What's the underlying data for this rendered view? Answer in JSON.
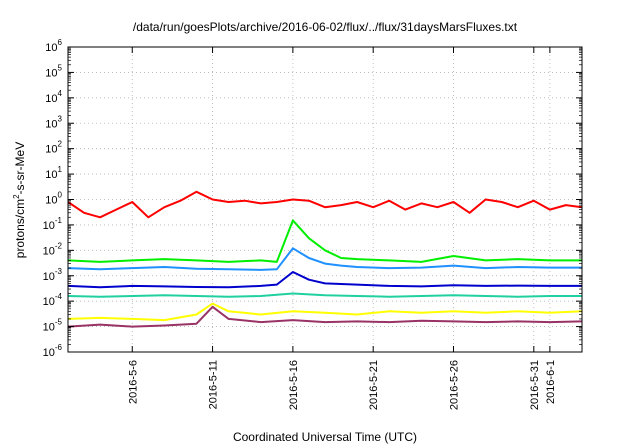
{
  "chart_data": {
    "type": "line",
    "title": "/data/run/goesPlots/archive/2016-06-02/flux/../flux/31daysMarsFluxes.txt",
    "xlabel": "Coordinated Universal Time (UTC)",
    "ylabel": "protons/cm2-s-sr-MeV",
    "y_scale": "log",
    "ylim": [
      1e-06,
      1000000.0
    ],
    "xlim": [
      "2016-05-02",
      "2016-06-03"
    ],
    "grid": true,
    "y_ticks": [
      {
        "base": "10",
        "exp": "-6"
      },
      {
        "base": "10",
        "exp": "-5"
      },
      {
        "base": "10",
        "exp": "-4"
      },
      {
        "base": "10",
        "exp": "-3"
      },
      {
        "base": "10",
        "exp": "-2"
      },
      {
        "base": "10",
        "exp": "-1"
      },
      {
        "base": "10",
        "exp": "0"
      },
      {
        "base": "10",
        "exp": "1"
      },
      {
        "base": "10",
        "exp": "2"
      },
      {
        "base": "10",
        "exp": "3"
      },
      {
        "base": "10",
        "exp": "4"
      },
      {
        "base": "10",
        "exp": "5"
      },
      {
        "base": "10",
        "exp": "6"
      }
    ],
    "x_ticks": [
      {
        "label": "2016-5-6",
        "date": "2016-05-06"
      },
      {
        "label": "2016-5-11",
        "date": "2016-05-11"
      },
      {
        "label": "2016-5-16",
        "date": "2016-05-16"
      },
      {
        "label": "2016-5-21",
        "date": "2016-05-21"
      },
      {
        "label": "2016-5-26",
        "date": "2016-05-26"
      },
      {
        "label": "2016-5-31",
        "date": "2016-05-31"
      },
      {
        "label": "2016-6-1",
        "date": "2016-06-01"
      }
    ],
    "series": [
      {
        "color": "#ff0000",
        "x": [
          "2016-05-02",
          "2016-05-03",
          "2016-05-04",
          "2016-05-05",
          "2016-05-06",
          "2016-05-07",
          "2016-05-08",
          "2016-05-09",
          "2016-05-10",
          "2016-05-11",
          "2016-05-12",
          "2016-05-13",
          "2016-05-14",
          "2016-05-15",
          "2016-05-16",
          "2016-05-17",
          "2016-05-18",
          "2016-05-19",
          "2016-05-20",
          "2016-05-21",
          "2016-05-22",
          "2016-05-23",
          "2016-05-24",
          "2016-05-25",
          "2016-05-26",
          "2016-05-27",
          "2016-05-28",
          "2016-05-29",
          "2016-05-30",
          "2016-05-31",
          "2016-06-01",
          "2016-06-02",
          "2016-06-03"
        ],
        "y": [
          0.8,
          0.3,
          0.2,
          0.4,
          0.8,
          0.2,
          0.5,
          0.9,
          2,
          1,
          0.8,
          0.9,
          0.7,
          0.8,
          1,
          0.9,
          0.5,
          0.6,
          0.8,
          0.5,
          0.9,
          0.4,
          0.7,
          0.5,
          0.8,
          0.3,
          1,
          0.8,
          0.5,
          0.9,
          0.4,
          0.6,
          0.5
        ]
      },
      {
        "color": "#00ee00",
        "x": [
          "2016-05-02",
          "2016-05-04",
          "2016-05-06",
          "2016-05-08",
          "2016-05-10",
          "2016-05-12",
          "2016-05-14",
          "2016-05-15",
          "2016-05-16",
          "2016-05-17",
          "2016-05-18",
          "2016-05-19",
          "2016-05-20",
          "2016-05-22",
          "2016-05-24",
          "2016-05-26",
          "2016-05-28",
          "2016-05-30",
          "2016-06-01",
          "2016-06-03"
        ],
        "y": [
          0.004,
          0.0035,
          0.004,
          0.0045,
          0.004,
          0.0035,
          0.004,
          0.0035,
          0.15,
          0.03,
          0.01,
          0.005,
          0.0045,
          0.004,
          0.0035,
          0.006,
          0.004,
          0.0045,
          0.004,
          0.004
        ]
      },
      {
        "color": "#1e90ff",
        "x": [
          "2016-05-02",
          "2016-05-04",
          "2016-05-06",
          "2016-05-08",
          "2016-05-10",
          "2016-05-12",
          "2016-05-14",
          "2016-05-15",
          "2016-05-16",
          "2016-05-17",
          "2016-05-18",
          "2016-05-19",
          "2016-05-20",
          "2016-05-22",
          "2016-05-24",
          "2016-05-26",
          "2016-05-28",
          "2016-05-30",
          "2016-06-01",
          "2016-06-03"
        ],
        "y": [
          0.002,
          0.0018,
          0.002,
          0.0022,
          0.0019,
          0.0018,
          0.0017,
          0.0018,
          0.012,
          0.005,
          0.003,
          0.0025,
          0.0022,
          0.002,
          0.0021,
          0.0025,
          0.002,
          0.0022,
          0.0021,
          0.0021
        ]
      },
      {
        "color": "#0000cd",
        "x": [
          "2016-05-02",
          "2016-05-04",
          "2016-05-06",
          "2016-05-08",
          "2016-05-10",
          "2016-05-12",
          "2016-05-14",
          "2016-05-15",
          "2016-05-16",
          "2016-05-17",
          "2016-05-18",
          "2016-05-20",
          "2016-05-22",
          "2016-05-24",
          "2016-05-26",
          "2016-05-28",
          "2016-05-30",
          "2016-06-01",
          "2016-06-03"
        ],
        "y": [
          0.0004,
          0.00035,
          0.0004,
          0.00038,
          0.00036,
          0.00035,
          0.0004,
          0.00045,
          0.0014,
          0.0007,
          0.0005,
          0.00045,
          0.0004,
          0.00038,
          0.00042,
          0.0004,
          0.00041,
          0.0004,
          0.0004
        ]
      },
      {
        "color": "#20d0a0",
        "x": [
          "2016-05-02",
          "2016-05-04",
          "2016-05-06",
          "2016-05-08",
          "2016-05-10",
          "2016-05-12",
          "2016-05-14",
          "2016-05-16",
          "2016-05-18",
          "2016-05-20",
          "2016-05-22",
          "2016-05-24",
          "2016-05-26",
          "2016-05-28",
          "2016-05-30",
          "2016-06-01",
          "2016-06-03"
        ],
        "y": [
          0.00016,
          0.00015,
          0.00016,
          0.00017,
          0.00016,
          0.00015,
          0.00016,
          0.0002,
          0.00017,
          0.00016,
          0.00015,
          0.00016,
          0.00017,
          0.00016,
          0.00015,
          0.00016,
          0.00016
        ]
      },
      {
        "color": "#ffff00",
        "x": [
          "2016-05-02",
          "2016-05-04",
          "2016-05-06",
          "2016-05-08",
          "2016-05-10",
          "2016-05-11",
          "2016-05-12",
          "2016-05-14",
          "2016-05-16",
          "2016-05-18",
          "2016-05-20",
          "2016-05-22",
          "2016-05-24",
          "2016-05-26",
          "2016-05-28",
          "2016-05-30",
          "2016-06-01",
          "2016-06-03"
        ],
        "y": [
          2e-05,
          2.2e-05,
          2e-05,
          1.8e-05,
          3e-05,
          8e-05,
          4e-05,
          3e-05,
          4e-05,
          3.5e-05,
          3e-05,
          4e-05,
          3.5e-05,
          4e-05,
          3.5e-05,
          4e-05,
          3.5e-05,
          4e-05
        ]
      },
      {
        "color": "#993366",
        "x": [
          "2016-05-02",
          "2016-05-04",
          "2016-05-06",
          "2016-05-08",
          "2016-05-10",
          "2016-05-11",
          "2016-05-12",
          "2016-05-14",
          "2016-05-16",
          "2016-05-18",
          "2016-05-20",
          "2016-05-22",
          "2016-05-24",
          "2016-05-26",
          "2016-05-28",
          "2016-05-30",
          "2016-06-01",
          "2016-06-03"
        ],
        "y": [
          1e-05,
          1.2e-05,
          1e-05,
          1.1e-05,
          1.3e-05,
          6e-05,
          2e-05,
          1.5e-05,
          1.8e-05,
          1.5e-05,
          1.6e-05,
          1.5e-05,
          1.7e-05,
          1.6e-05,
          1.5e-05,
          1.6e-05,
          1.5e-05,
          1.6e-05
        ]
      }
    ]
  }
}
